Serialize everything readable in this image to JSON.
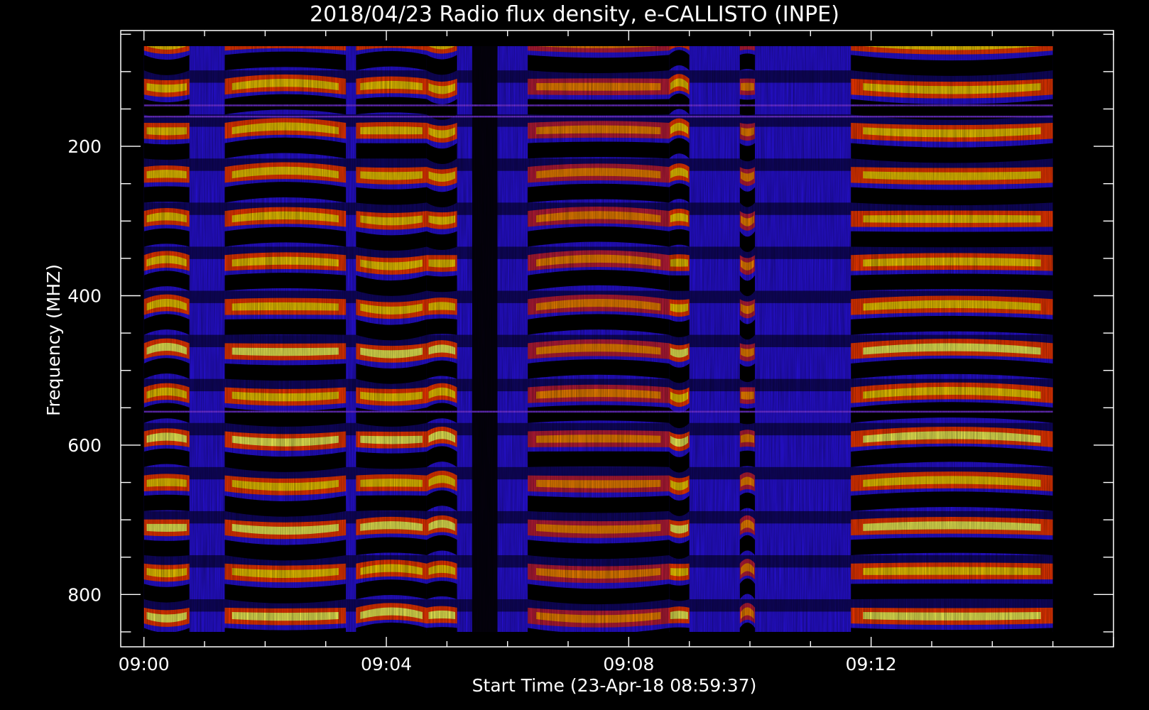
{
  "chart_data": {
    "type": "heatmap",
    "title": "2018/04/23  Radio flux density, e-CALLISTO (INPE)",
    "xlabel": "Start Time (23-Apr-18 08:59:37)",
    "ylabel": "Frequency (MHZ)",
    "x_ticks": [
      {
        "label": "09:00",
        "minutes": 0
      },
      {
        "label": "09:04",
        "minutes": 4
      },
      {
        "label": "09:08",
        "minutes": 8
      },
      {
        "label": "09:12",
        "minutes": 12
      }
    ],
    "y_ticks": [
      {
        "label": "200",
        "value": 200
      },
      {
        "label": "400",
        "value": 400
      },
      {
        "label": "600",
        "value": 600
      },
      {
        "label": "800",
        "value": 800
      }
    ],
    "y_inverted": true,
    "y_range_mhz": [
      45,
      870
    ],
    "x_range": [
      "08:59:37",
      "09:16:00"
    ],
    "data_range": [
      "09:00:00",
      "09:15:00"
    ],
    "colormap": [
      "#000000",
      "#1a0a9a",
      "#3a14ff",
      "#7a1ed8",
      "#c51e3c",
      "#ff3a00",
      "#ff8a00",
      "#ffd400",
      "#ffff5a"
    ],
    "stripe_period_mhz": 59,
    "bright_intervals": [
      {
        "start": "09:00:00",
        "end": "09:00:45",
        "level": "strong"
      },
      {
        "start": "09:01:20",
        "end": "09:03:20",
        "level": "strong"
      },
      {
        "start": "09:03:30",
        "end": "09:04:40",
        "level": "strong"
      },
      {
        "start": "09:04:40",
        "end": "09:05:10",
        "level": "strong"
      },
      {
        "start": "09:06:20",
        "end": "09:08:40",
        "level": "medium"
      },
      {
        "start": "09:08:40",
        "end": "09:09:00",
        "level": "strong"
      },
      {
        "start": "09:09:50",
        "end": "09:10:05",
        "level": "medium"
      },
      {
        "start": "09:11:40",
        "end": "09:15:00",
        "level": "strong"
      }
    ],
    "dark_intervals": [
      {
        "start": "09:05:25",
        "end": "09:05:50"
      }
    ],
    "interference_lines_mhz": [
      47,
      145,
      160,
      555
    ]
  }
}
